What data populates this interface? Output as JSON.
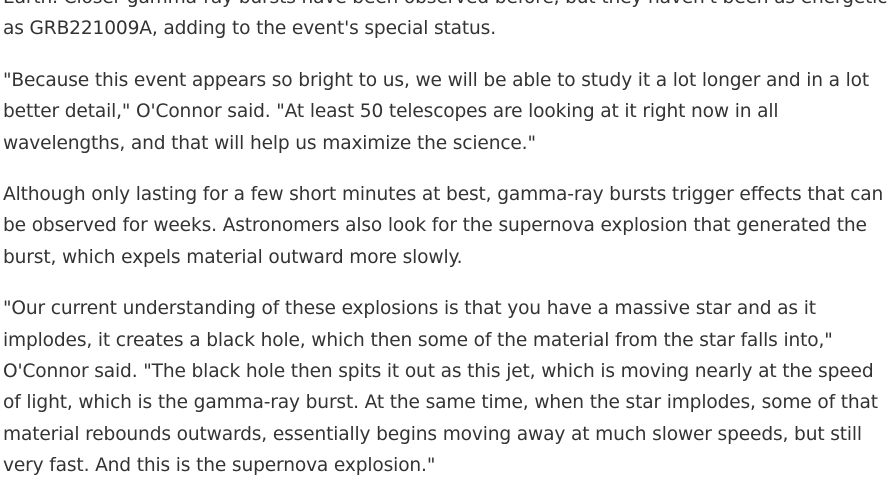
{
  "article": {
    "paragraphs": [
      "Earth. Closer gamma-ray bursts have been observed before, but they haven't been as energetic as GRB221009A, adding to the event's special status.",
      "\"Because this event appears so bright to us, we will be able to study it a lot longer and in a lot better detail,\" O'Connor said. \"At least 50 telescopes are looking at it right now in all wavelengths, and that will help us maximize the science.\"",
      "Although only lasting for a few short minutes at best, gamma-ray bursts trigger effects that can be observed for weeks. Astronomers also look for the supernova explosion that generated the burst, which expels material outward more slowly.",
      "\"Our current understanding of these explosions is that you have a massive star and as it implodes, it creates a black hole, which then some of the material from the star falls into,\" O'Connor said. \"The black hole then spits it out as this jet, which is moving nearly at the speed of light, which is the gamma-ray burst. At the same time, when the star implodes, some of that material rebounds outwards, essentially begins moving away at much slower speeds, but still very fast. And this is the supernova explosion.\""
    ]
  }
}
